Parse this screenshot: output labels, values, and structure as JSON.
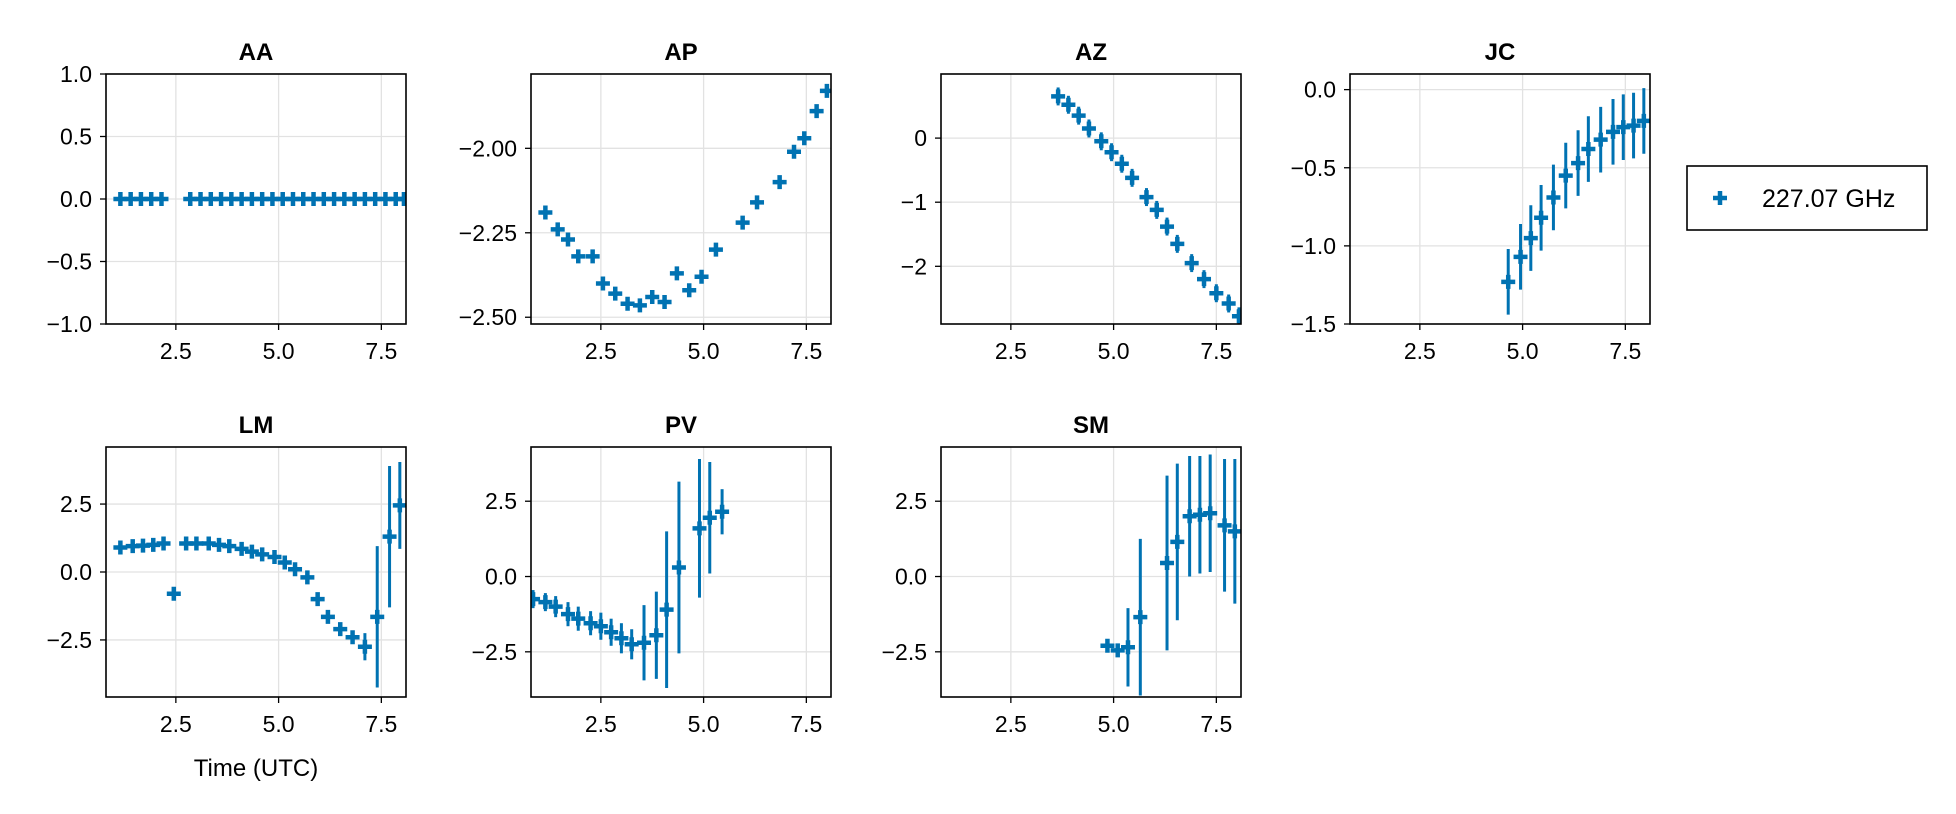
{
  "chart_data": {
    "type": "scatter",
    "marker_color": "#0072b2",
    "marker": "plus",
    "error_bars": true,
    "legend": {
      "placement": "right",
      "entries": [
        "227.07 GHz"
      ]
    },
    "xlabel": "Time (UTC)",
    "panels": [
      {
        "title": "AA",
        "xlim": [
          0.8,
          8.1
        ],
        "ylim": [
          -1.0,
          1.0
        ],
        "xticks": [
          2.5,
          5.0,
          7.5
        ],
        "xtick_labels": [
          "2.5",
          "5.0",
          "7.5"
        ],
        "yticks": [
          1.0,
          0.5,
          0.0,
          -0.5,
          -1.0
        ],
        "ytick_labels": [
          "1.0",
          "0.5",
          "0.0",
          "−0.5",
          "−1.0"
        ],
        "xlabel": "",
        "points": [
          {
            "x": 1.15,
            "y": 0.0,
            "e": 0
          },
          {
            "x": 1.4,
            "y": 0.0,
            "e": 0
          },
          {
            "x": 1.65,
            "y": 0.0,
            "e": 0
          },
          {
            "x": 1.9,
            "y": 0.0,
            "e": 0
          },
          {
            "x": 2.15,
            "y": 0.0,
            "e": 0
          },
          {
            "x": 2.85,
            "y": 0.0,
            "e": 0
          },
          {
            "x": 3.1,
            "y": 0.0,
            "e": 0
          },
          {
            "x": 3.35,
            "y": 0.0,
            "e": 0
          },
          {
            "x": 3.6,
            "y": 0.0,
            "e": 0
          },
          {
            "x": 3.85,
            "y": 0.0,
            "e": 0
          },
          {
            "x": 4.1,
            "y": 0.0,
            "e": 0
          },
          {
            "x": 4.35,
            "y": 0.0,
            "e": 0
          },
          {
            "x": 4.6,
            "y": 0.0,
            "e": 0
          },
          {
            "x": 4.85,
            "y": 0.0,
            "e": 0
          },
          {
            "x": 5.1,
            "y": 0.0,
            "e": 0
          },
          {
            "x": 5.35,
            "y": 0.0,
            "e": 0
          },
          {
            "x": 5.6,
            "y": 0.0,
            "e": 0
          },
          {
            "x": 5.85,
            "y": 0.0,
            "e": 0
          },
          {
            "x": 6.1,
            "y": 0.0,
            "e": 0
          },
          {
            "x": 6.35,
            "y": 0.0,
            "e": 0
          },
          {
            "x": 6.6,
            "y": 0.0,
            "e": 0
          },
          {
            "x": 6.85,
            "y": 0.0,
            "e": 0
          },
          {
            "x": 7.1,
            "y": 0.0,
            "e": 0
          },
          {
            "x": 7.35,
            "y": 0.0,
            "e": 0
          },
          {
            "x": 7.6,
            "y": 0.0,
            "e": 0
          },
          {
            "x": 7.85,
            "y": 0.0,
            "e": 0
          },
          {
            "x": 8.05,
            "y": 0.0,
            "e": 0
          }
        ]
      },
      {
        "title": "AP",
        "xlim": [
          0.8,
          8.1
        ],
        "ylim": [
          -2.52,
          -1.78
        ],
        "xticks": [
          2.5,
          5.0,
          7.5
        ],
        "xtick_labels": [
          "2.5",
          "5.0",
          "7.5"
        ],
        "yticks": [
          -2.0,
          -2.25,
          -2.5
        ],
        "ytick_labels": [
          "−2.00",
          "−2.25",
          "−2.50"
        ],
        "xlabel": "",
        "points": [
          {
            "x": 1.15,
            "y": -2.19,
            "e": 0
          },
          {
            "x": 1.45,
            "y": -2.24,
            "e": 0
          },
          {
            "x": 1.7,
            "y": -2.27,
            "e": 0
          },
          {
            "x": 1.95,
            "y": -2.32,
            "e": 0
          },
          {
            "x": 2.3,
            "y": -2.32,
            "e": 0
          },
          {
            "x": 2.55,
            "y": -2.4,
            "e": 0
          },
          {
            "x": 2.85,
            "y": -2.43,
            "e": 0
          },
          {
            "x": 3.15,
            "y": -2.46,
            "e": 0
          },
          {
            "x": 3.45,
            "y": -2.465,
            "e": 0
          },
          {
            "x": 3.75,
            "y": -2.44,
            "e": 0
          },
          {
            "x": 4.05,
            "y": -2.455,
            "e": 0
          },
          {
            "x": 4.35,
            "y": -2.37,
            "e": 0
          },
          {
            "x": 4.65,
            "y": -2.42,
            "e": 0
          },
          {
            "x": 4.95,
            "y": -2.38,
            "e": 0
          },
          {
            "x": 5.3,
            "y": -2.3,
            "e": 0
          },
          {
            "x": 5.95,
            "y": -2.22,
            "e": 0
          },
          {
            "x": 6.3,
            "y": -2.16,
            "e": 0
          },
          {
            "x": 6.85,
            "y": -2.1,
            "e": 0
          },
          {
            "x": 7.2,
            "y": -2.01,
            "e": 0
          },
          {
            "x": 7.45,
            "y": -1.97,
            "e": 0
          },
          {
            "x": 7.75,
            "y": -1.89,
            "e": 0
          },
          {
            "x": 8.0,
            "y": -1.83,
            "e": 0
          }
        ]
      },
      {
        "title": "AZ",
        "xlim": [
          0.8,
          8.1
        ],
        "ylim": [
          -2.9,
          1.0
        ],
        "xticks": [
          2.5,
          5.0,
          7.5
        ],
        "xtick_labels": [
          "2.5",
          "5.0",
          "7.5"
        ],
        "yticks": [
          0,
          -1,
          -2
        ],
        "ytick_labels": [
          "0",
          "−1",
          "−2"
        ],
        "xlabel": "",
        "points": [
          {
            "x": 3.65,
            "y": 0.65,
            "e": 0.14
          },
          {
            "x": 3.9,
            "y": 0.52,
            "e": 0.14
          },
          {
            "x": 4.15,
            "y": 0.35,
            "e": 0.14
          },
          {
            "x": 4.4,
            "y": 0.15,
            "e": 0.14
          },
          {
            "x": 4.7,
            "y": -0.05,
            "e": 0.14
          },
          {
            "x": 4.95,
            "y": -0.22,
            "e": 0.14
          },
          {
            "x": 5.2,
            "y": -0.4,
            "e": 0.14
          },
          {
            "x": 5.45,
            "y": -0.62,
            "e": 0.14
          },
          {
            "x": 5.8,
            "y": -0.92,
            "e": 0.14
          },
          {
            "x": 6.05,
            "y": -1.12,
            "e": 0.14
          },
          {
            "x": 6.3,
            "y": -1.38,
            "e": 0.14
          },
          {
            "x": 6.55,
            "y": -1.65,
            "e": 0.14
          },
          {
            "x": 6.9,
            "y": -1.95,
            "e": 0.14
          },
          {
            "x": 7.2,
            "y": -2.2,
            "e": 0.14
          },
          {
            "x": 7.5,
            "y": -2.42,
            "e": 0.14
          },
          {
            "x": 7.8,
            "y": -2.58,
            "e": 0.14
          },
          {
            "x": 8.05,
            "y": -2.78,
            "e": 0.14
          }
        ]
      },
      {
        "title": "JC",
        "xlim": [
          0.8,
          8.1
        ],
        "ylim": [
          -1.5,
          0.1
        ],
        "xticks": [
          2.5,
          5.0,
          7.5
        ],
        "xtick_labels": [
          "2.5",
          "5.0",
          "7.5"
        ],
        "yticks": [
          0.0,
          -0.5,
          -1.0,
          -1.5
        ],
        "ytick_labels": [
          "0.0",
          "−0.5",
          "−1.0",
          "−1.5"
        ],
        "xlabel": "",
        "points": [
          {
            "x": 4.65,
            "y": -1.23,
            "e": 0.21
          },
          {
            "x": 4.95,
            "y": -1.07,
            "e": 0.21
          },
          {
            "x": 5.2,
            "y": -0.95,
            "e": 0.21
          },
          {
            "x": 5.45,
            "y": -0.82,
            "e": 0.21
          },
          {
            "x": 5.75,
            "y": -0.69,
            "e": 0.21
          },
          {
            "x": 6.05,
            "y": -0.55,
            "e": 0.21
          },
          {
            "x": 6.35,
            "y": -0.47,
            "e": 0.21
          },
          {
            "x": 6.6,
            "y": -0.38,
            "e": 0.21
          },
          {
            "x": 6.9,
            "y": -0.32,
            "e": 0.21
          },
          {
            "x": 7.2,
            "y": -0.27,
            "e": 0.21
          },
          {
            "x": 7.45,
            "y": -0.24,
            "e": 0.21
          },
          {
            "x": 7.7,
            "y": -0.23,
            "e": 0.21
          },
          {
            "x": 7.95,
            "y": -0.2,
            "e": 0.21
          }
        ]
      },
      {
        "title": "LM",
        "xlim": [
          0.8,
          8.1
        ],
        "ylim": [
          -4.6,
          4.6
        ],
        "xticks": [
          2.5,
          5.0,
          7.5
        ],
        "xtick_labels": [
          "2.5",
          "5.0",
          "7.5"
        ],
        "yticks": [
          2.5,
          0.0,
          -2.5
        ],
        "ytick_labels": [
          "2.5",
          "0.0",
          "−2.5"
        ],
        "xlabel": "Time (UTC)",
        "points": [
          {
            "x": 1.15,
            "y": 0.9,
            "e": 0.15
          },
          {
            "x": 1.45,
            "y": 0.95,
            "e": 0.15
          },
          {
            "x": 1.7,
            "y": 0.97,
            "e": 0.15
          },
          {
            "x": 1.95,
            "y": 1.0,
            "e": 0.15
          },
          {
            "x": 2.2,
            "y": 1.05,
            "e": 0.15
          },
          {
            "x": 2.45,
            "y": -0.8,
            "e": 0.15
          },
          {
            "x": 2.75,
            "y": 1.05,
            "e": 0.15
          },
          {
            "x": 3.0,
            "y": 1.05,
            "e": 0.15
          },
          {
            "x": 3.3,
            "y": 1.05,
            "e": 0.15
          },
          {
            "x": 3.55,
            "y": 1.0,
            "e": 0.15
          },
          {
            "x": 3.8,
            "y": 0.95,
            "e": 0.15
          },
          {
            "x": 4.1,
            "y": 0.85,
            "e": 0.15
          },
          {
            "x": 4.35,
            "y": 0.75,
            "e": 0.15
          },
          {
            "x": 4.6,
            "y": 0.65,
            "e": 0.15
          },
          {
            "x": 4.9,
            "y": 0.55,
            "e": 0.15
          },
          {
            "x": 5.15,
            "y": 0.35,
            "e": 0.15
          },
          {
            "x": 5.4,
            "y": 0.1,
            "e": 0.15
          },
          {
            "x": 5.7,
            "y": -0.2,
            "e": 0.15
          },
          {
            "x": 5.95,
            "y": -1.0,
            "e": 0.15
          },
          {
            "x": 6.2,
            "y": -1.65,
            "e": 0.15
          },
          {
            "x": 6.5,
            "y": -2.1,
            "e": 0.15
          },
          {
            "x": 6.8,
            "y": -2.4,
            "e": 0.15
          },
          {
            "x": 7.1,
            "y": -2.75,
            "e": 0.5
          },
          {
            "x": 7.4,
            "y": -1.65,
            "e": 2.6
          },
          {
            "x": 7.7,
            "y": 1.3,
            "e": 2.6
          },
          {
            "x": 7.95,
            "y": 2.45,
            "e": 1.6
          }
        ]
      },
      {
        "title": "PV",
        "xlim": [
          0.8,
          8.1
        ],
        "ylim": [
          -4.0,
          4.3
        ],
        "xticks": [
          2.5,
          5.0,
          7.5
        ],
        "xtick_labels": [
          "2.5",
          "5.0",
          "7.5"
        ],
        "yticks": [
          2.5,
          0.0,
          -2.5
        ],
        "ytick_labels": [
          "2.5",
          "0.0",
          "−2.5"
        ],
        "xlabel": "",
        "points": [
          {
            "x": 0.85,
            "y": -0.75,
            "e": 0.3
          },
          {
            "x": 1.15,
            "y": -0.85,
            "e": 0.3
          },
          {
            "x": 1.4,
            "y": -1.0,
            "e": 0.35
          },
          {
            "x": 1.7,
            "y": -1.25,
            "e": 0.4
          },
          {
            "x": 1.95,
            "y": -1.4,
            "e": 0.4
          },
          {
            "x": 2.25,
            "y": -1.55,
            "e": 0.4
          },
          {
            "x": 2.5,
            "y": -1.65,
            "e": 0.45
          },
          {
            "x": 2.75,
            "y": -1.85,
            "e": 0.45
          },
          {
            "x": 3.0,
            "y": -2.05,
            "e": 0.5
          },
          {
            "x": 3.25,
            "y": -2.25,
            "e": 0.5
          },
          {
            "x": 3.55,
            "y": -2.2,
            "e": 1.25
          },
          {
            "x": 3.85,
            "y": -1.95,
            "e": 1.45
          },
          {
            "x": 4.1,
            "y": -1.1,
            "e": 2.6
          },
          {
            "x": 4.4,
            "y": 0.3,
            "e": 2.85
          },
          {
            "x": 4.9,
            "y": 1.6,
            "e": 2.3
          },
          {
            "x": 5.15,
            "y": 1.95,
            "e": 1.85
          },
          {
            "x": 5.45,
            "y": 2.15,
            "e": 0.75
          }
        ]
      },
      {
        "title": "SM",
        "xlim": [
          0.8,
          8.1
        ],
        "ylim": [
          -4.0,
          4.3
        ],
        "xticks": [
          2.5,
          5.0,
          7.5
        ],
        "xtick_labels": [
          "2.5",
          "5.0",
          "7.5"
        ],
        "yticks": [
          2.5,
          0.0,
          -2.5
        ],
        "ytick_labels": [
          "2.5",
          "0.0",
          "−2.5"
        ],
        "xlabel": "",
        "points": [
          {
            "x": 4.85,
            "y": -2.3,
            "e": 0.1
          },
          {
            "x": 5.1,
            "y": -2.45,
            "e": 0.2
          },
          {
            "x": 5.35,
            "y": -2.35,
            "e": 1.3
          },
          {
            "x": 5.65,
            "y": -1.35,
            "e": 2.6
          },
          {
            "x": 6.3,
            "y": 0.45,
            "e": 2.9
          },
          {
            "x": 6.55,
            "y": 1.15,
            "e": 2.6
          },
          {
            "x": 6.85,
            "y": 2.0,
            "e": 2.0
          },
          {
            "x": 7.1,
            "y": 2.05,
            "e": 1.95
          },
          {
            "x": 7.35,
            "y": 2.1,
            "e": 1.95
          },
          {
            "x": 7.7,
            "y": 1.7,
            "e": 2.2
          },
          {
            "x": 7.95,
            "y": 1.5,
            "e": 2.4
          }
        ]
      }
    ]
  }
}
